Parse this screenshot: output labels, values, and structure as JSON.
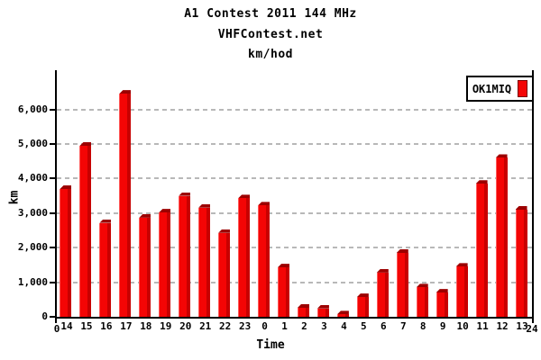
{
  "title": "A1 Contest 2011 144 MHz",
  "subtitle": "VHFContest.net",
  "unit_line": "km/hod",
  "legend": {
    "label": "OK1MIQ"
  },
  "axes": {
    "y_label": "km",
    "x_label": "Time",
    "y_tick_labels": [
      "0",
      "1,000",
      "2,000",
      "3,000",
      "4,000",
      "5,000",
      "6,000"
    ],
    "x_origin_label": "0",
    "x_end_label": "24"
  },
  "colors": {
    "bar_highlight": "#ff5a5a",
    "bar_front": "#f40505",
    "bar_side": "#c80000",
    "bar_top": "#9c0000",
    "grid": "#b8b8b8",
    "axis": "#000000"
  },
  "chart_data": {
    "type": "bar",
    "title": "A1 Contest 2011 144 MHz",
    "subtitle": "VHFContest.net",
    "units": "km/hod",
    "xlabel": "Time",
    "ylabel": "km",
    "categories": [
      "14",
      "15",
      "16",
      "17",
      "18",
      "19",
      "20",
      "21",
      "22",
      "23",
      "0",
      "1",
      "2",
      "3",
      "4",
      "5",
      "6",
      "7",
      "8",
      "9",
      "10",
      "11",
      "12",
      "13"
    ],
    "series": [
      {
        "name": "OK1MIQ",
        "color": "#f40505",
        "values": [
          3700,
          4950,
          2720,
          6460,
          2870,
          3020,
          3500,
          3160,
          2430,
          3430,
          3220,
          1430,
          260,
          240,
          70,
          570,
          1280,
          1850,
          850,
          700,
          1450,
          3850,
          4600,
          3100
        ]
      }
    ],
    "ylim": [
      0,
      7100
    ],
    "x_axis_range": [
      0,
      24
    ],
    "y_tick_values": [
      0,
      1000,
      2000,
      3000,
      4000,
      5000,
      6000
    ],
    "grid": "horizontal-dashed",
    "legend_position": "top-right"
  }
}
